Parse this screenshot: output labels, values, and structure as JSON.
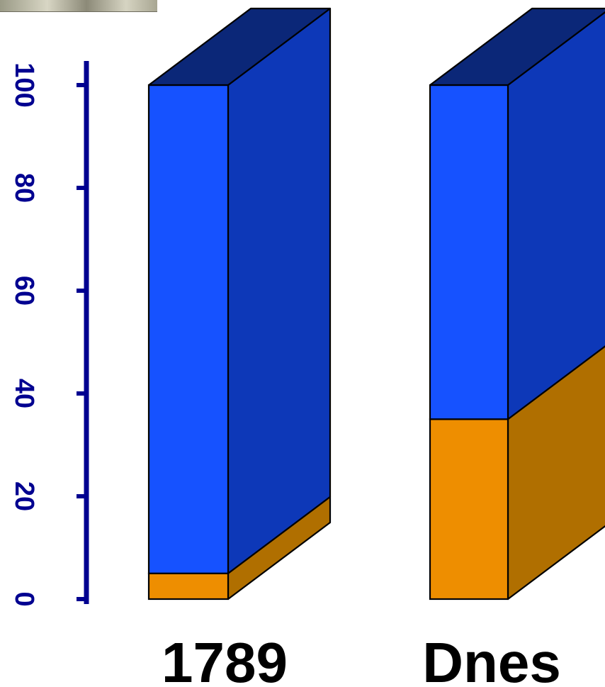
{
  "chart_data": {
    "type": "bar",
    "stacked": true,
    "three_d": true,
    "categories": [
      "1789",
      "Dnes"
    ],
    "series": [
      {
        "values": [
          5,
          35
        ]
      },
      {
        "values": [
          95,
          65
        ]
      }
    ],
    "ylim": [
      0,
      100
    ],
    "yticks": [
      "0",
      "20",
      "40",
      "60",
      "80",
      "100"
    ],
    "ytick_rotation": 90,
    "grid": false,
    "legend": "none",
    "colors": {
      "bottom_front": "#EE8E00",
      "bottom_side": "#B06F00",
      "top_front": "#1652FF",
      "top_side": "#0D38B8",
      "top_cap": "#0B2778",
      "axis": "#000090"
    }
  },
  "decorations": {
    "photo_strip": "photo-strip"
  }
}
